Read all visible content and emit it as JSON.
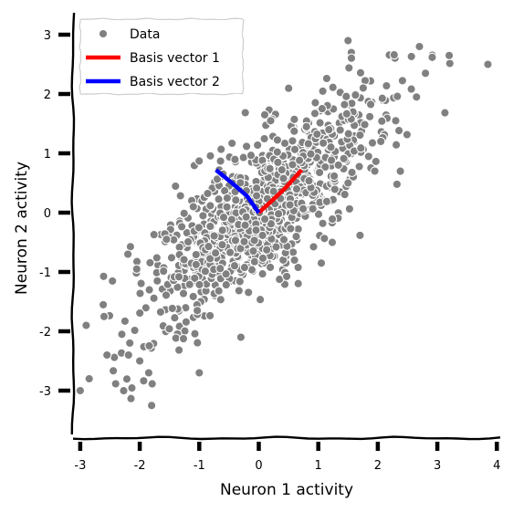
{
  "chart_data": {
    "type": "scatter",
    "title": "",
    "xlabel": "Neuron 1 activity",
    "ylabel": "Neuron 2 activity",
    "xlim": [
      -3,
      4
    ],
    "ylim": [
      -3.7,
      3.3
    ],
    "xticks": [
      -3,
      -2,
      -1,
      0,
      1,
      2,
      3,
      4
    ],
    "yticks": [
      -3,
      -2,
      -1,
      0,
      1,
      2,
      3
    ],
    "xtick_labels": [
      "-3",
      "-2",
      "-1",
      "0",
      "1",
      "2",
      "3",
      "4"
    ],
    "ytick_labels": [
      "-3",
      "-2",
      "-1",
      "0",
      "1",
      "2",
      "3"
    ],
    "grid": false,
    "legend_position": "top-left",
    "legend": [
      {
        "label": "Data",
        "kind": "marker",
        "color": "#808080"
      },
      {
        "label": "Basis vector 1",
        "kind": "line",
        "color": "#ff0000"
      },
      {
        "label": "Basis vector 2",
        "kind": "line",
        "color": "#0000ff"
      }
    ],
    "series": [
      {
        "name": "Data",
        "kind": "scatter",
        "color": "#808080",
        "edge_color": "#ffffff",
        "approximate_point_count": 1000,
        "covariance_correlation": 0.8,
        "notable_points": [
          [
            -3.0,
            -3.0
          ],
          [
            -2.85,
            -2.8
          ],
          [
            -2.55,
            -2.4
          ],
          [
            -2.3,
            -2.05
          ],
          [
            -2.2,
            -0.7
          ],
          [
            -2.05,
            -0.95
          ],
          [
            -2.0,
            -2.5
          ],
          [
            -1.8,
            -3.25
          ],
          [
            -1.85,
            -2.7
          ],
          [
            -1.0,
            -2.7
          ],
          [
            -0.3,
            -2.1
          ],
          [
            0.6,
            -0.8
          ],
          [
            1.05,
            -0.85
          ],
          [
            1.5,
            2.9
          ],
          [
            2.7,
            2.8
          ],
          [
            3.2,
            2.65
          ],
          [
            3.85,
            2.5
          ],
          [
            2.8,
            2.35
          ],
          [
            2.65,
            1.95
          ],
          [
            2.3,
            1.55
          ],
          [
            2.05,
            1.2
          ],
          [
            1.95,
            0.7
          ],
          [
            1.5,
            0.5
          ],
          [
            0.8,
            1.45
          ],
          [
            -0.6,
            0.65
          ],
          [
            -2.9,
            -1.9
          ],
          [
            -2.6,
            -1.75
          ],
          [
            -1.55,
            -0.45
          ],
          [
            -1.1,
            0.1
          ],
          [
            0.2,
            1.55
          ]
        ]
      },
      {
        "name": "Basis vector 1",
        "kind": "line",
        "color": "#ff0000",
        "points": [
          [
            0.0,
            0.0
          ],
          [
            0.2,
            0.18
          ],
          [
            0.45,
            0.42
          ],
          [
            0.72,
            0.72
          ]
        ]
      },
      {
        "name": "Basis vector 2",
        "kind": "line",
        "color": "#0000ff",
        "points": [
          [
            0.0,
            0.0
          ],
          [
            -0.2,
            0.28
          ],
          [
            -0.45,
            0.5
          ],
          [
            -0.72,
            0.72
          ]
        ]
      }
    ]
  }
}
